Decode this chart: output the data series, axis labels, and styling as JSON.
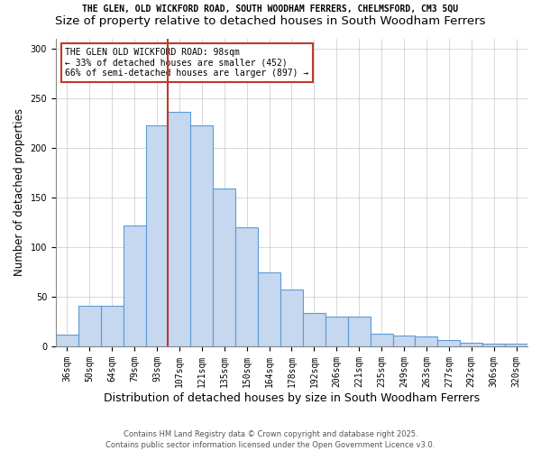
{
  "title_line1": "THE GLEN, OLD WICKFORD ROAD, SOUTH WOODHAM FERRERS, CHELMSFORD, CM3 5QU",
  "title_line2": "Size of property relative to detached houses in South Woodham Ferrers",
  "xlabel": "Distribution of detached houses by size in South Woodham Ferrers",
  "ylabel": "Number of detached properties",
  "footnote": "Contains HM Land Registry data © Crown copyright and database right 2025.\nContains public sector information licensed under the Open Government Licence v3.0.",
  "bar_labels": [
    "36sqm",
    "50sqm",
    "64sqm",
    "79sqm",
    "93sqm",
    "107sqm",
    "121sqm",
    "135sqm",
    "150sqm",
    "164sqm",
    "178sqm",
    "192sqm",
    "206sqm",
    "221sqm",
    "235sqm",
    "249sqm",
    "263sqm",
    "277sqm",
    "292sqm",
    "306sqm",
    "320sqm"
  ],
  "bar_values": [
    12,
    41,
    41,
    122,
    222,
    236,
    222,
    159,
    120,
    74,
    57,
    34,
    30,
    30,
    13,
    11,
    10,
    6,
    4,
    3,
    3
  ],
  "bar_color": "#c5d8f0",
  "bar_edge_color": "#5b9bd5",
  "bar_edge_width": 0.8,
  "vline_x": 4.5,
  "vline_color": "#c0392b",
  "annotation_text": "THE GLEN OLD WICKFORD ROAD: 98sqm\n← 33% of detached houses are smaller (452)\n66% of semi-detached houses are larger (897) →",
  "annotation_box_color": "#ffffff",
  "annotation_box_edge": "#c0392b",
  "ylim": [
    0,
    310
  ],
  "yticks": [
    0,
    50,
    100,
    150,
    200,
    250,
    300
  ],
  "grid_color": "#c8c8c8",
  "background_color": "#ffffff",
  "title1_fontsize": 7.0,
  "title2_fontsize": 9.5,
  "ylabel_fontsize": 8.5,
  "xlabel_fontsize": 9.0,
  "tick_fontsize": 7.0,
  "annotation_fontsize": 7.0,
  "footnote_fontsize": 6.0
}
